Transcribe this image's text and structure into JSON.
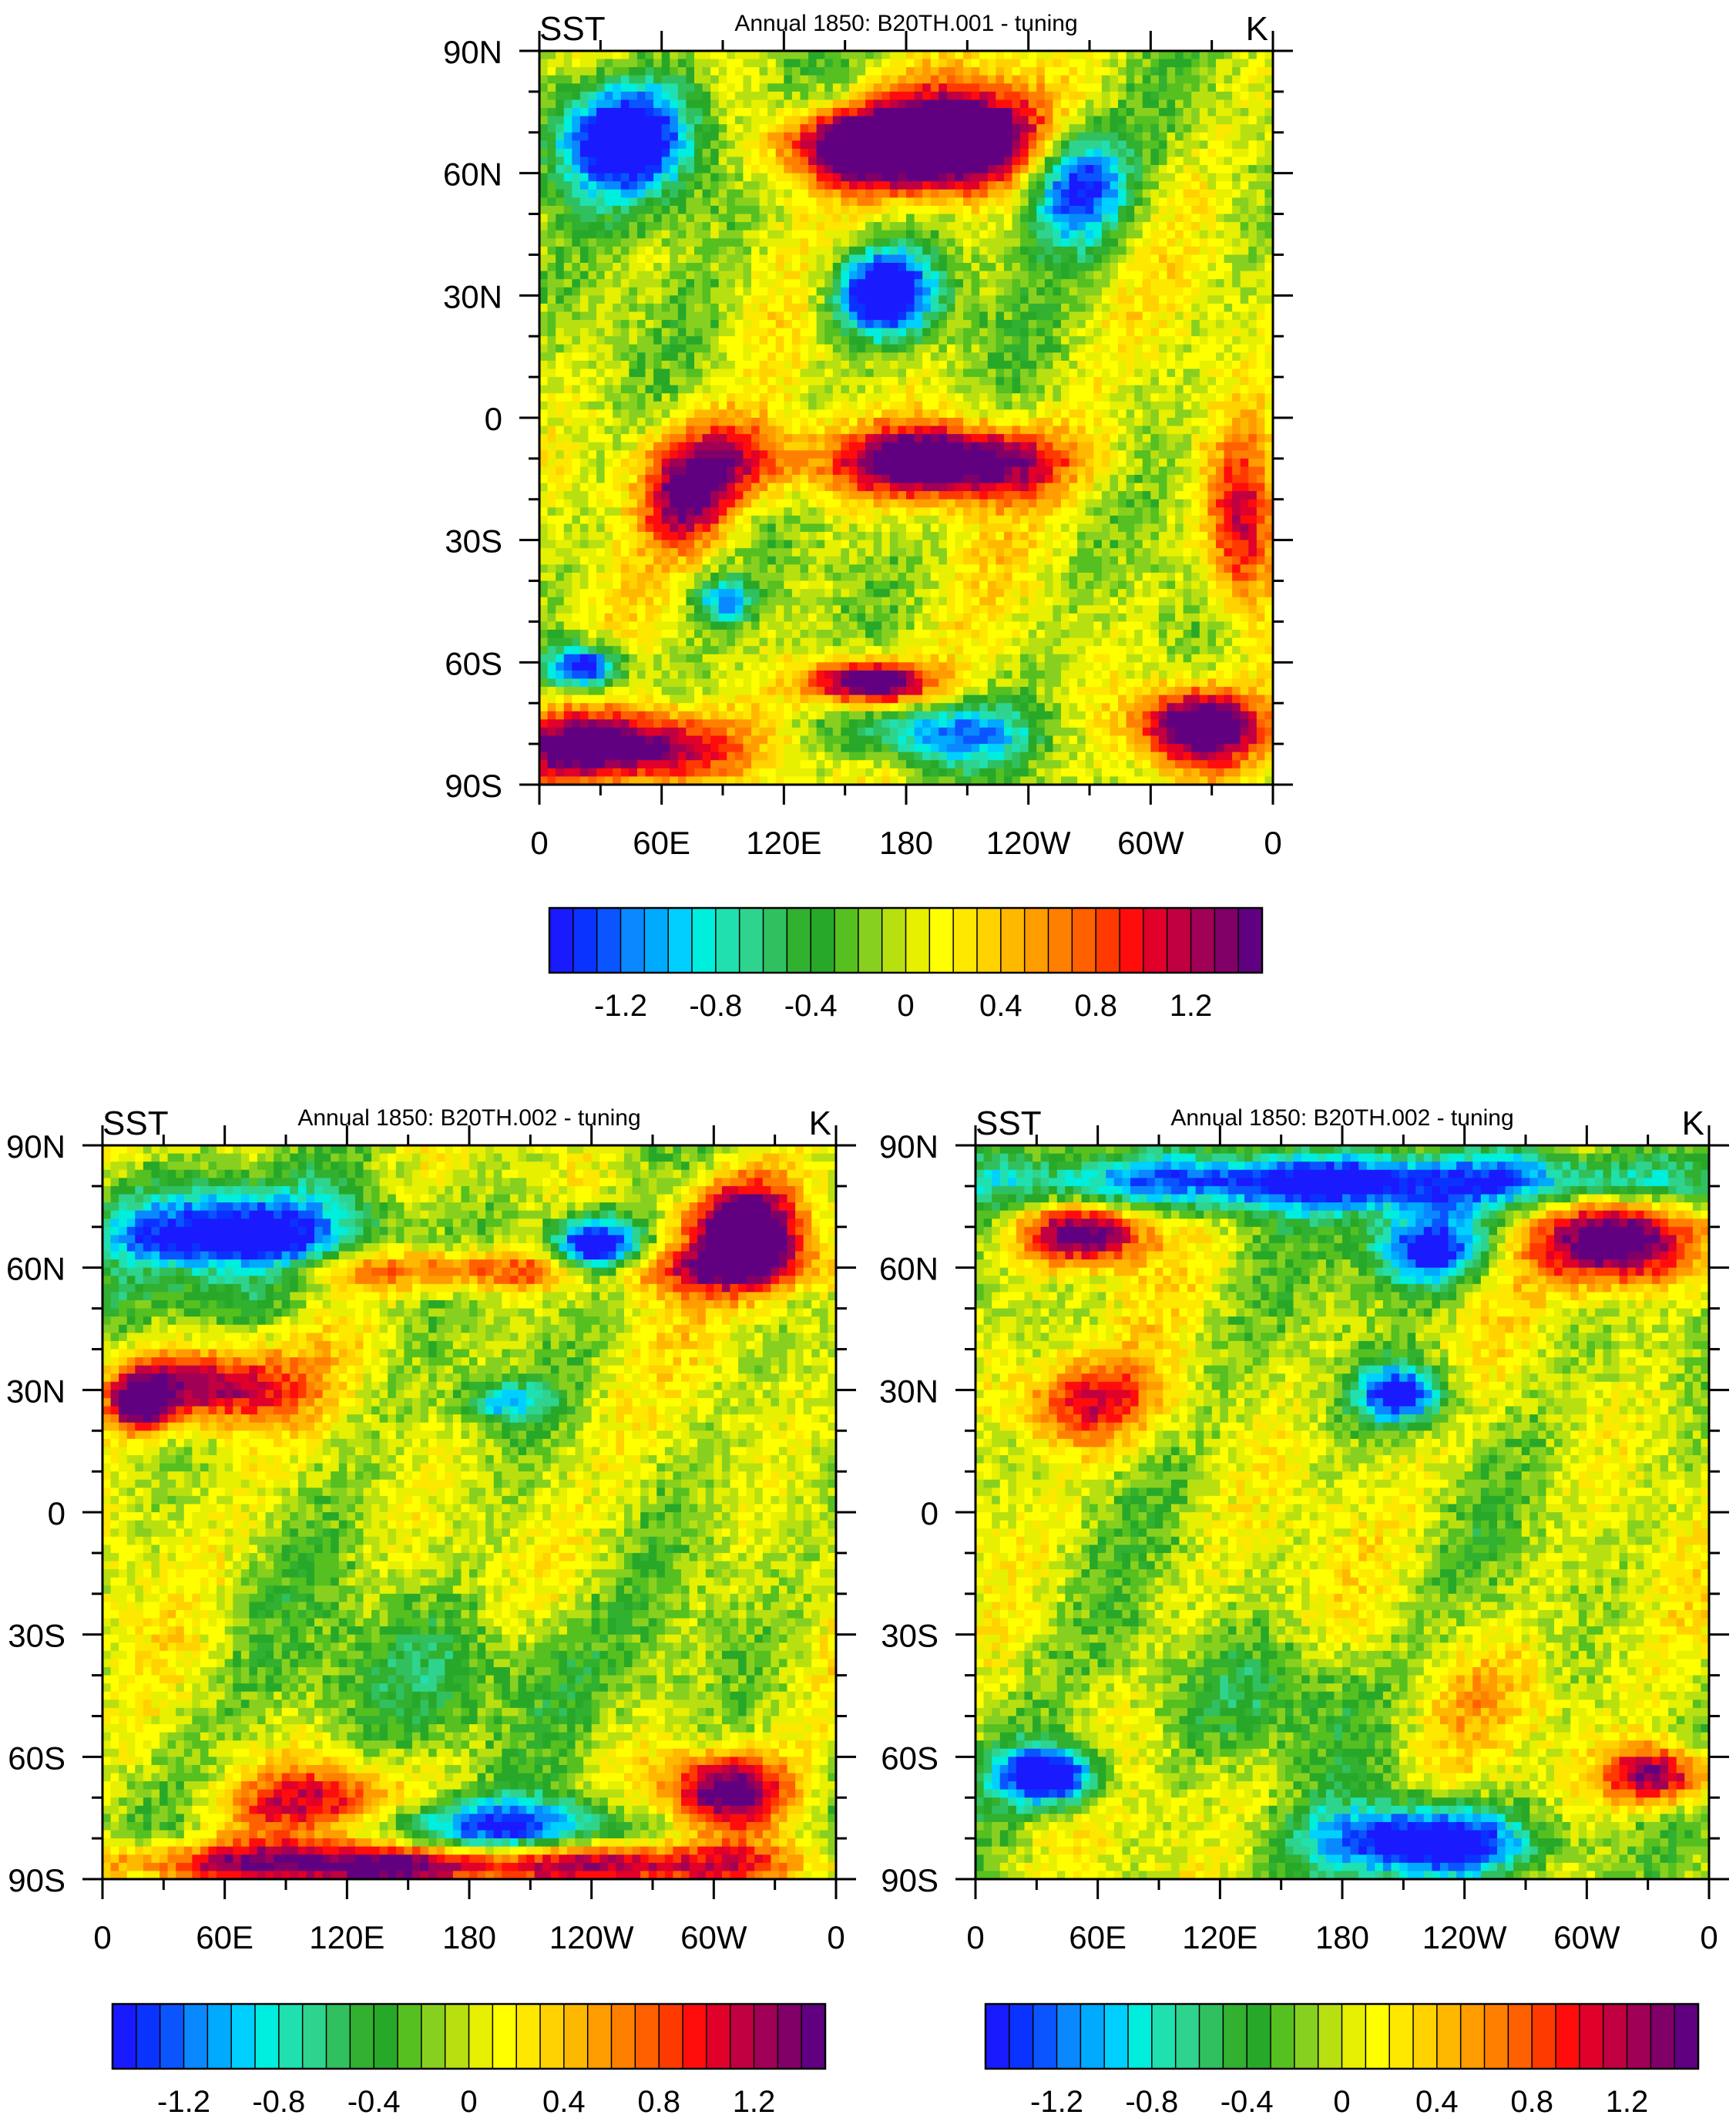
{
  "panels": [
    {
      "left_label": "SST",
      "title": "Annual 1850: B20TH.001 - tuning",
      "right_label": "K",
      "lat_labels": [
        "90N",
        "60N",
        "30N",
        "0",
        "30S",
        "60S",
        "90S"
      ],
      "lon_labels": [
        "0",
        "60E",
        "120E",
        "180",
        "120W",
        "60W",
        "0"
      ],
      "colorbar_labels": [
        "-1.2",
        "-0.8",
        "-0.4",
        "0",
        "0.4",
        "0.8",
        "1.2"
      ]
    },
    {
      "left_label": "SST",
      "title": "Annual 1850: B20TH.002 - tuning",
      "right_label": "K",
      "lat_labels": [
        "90N",
        "60N",
        "30N",
        "0",
        "30S",
        "60S",
        "90S"
      ],
      "lon_labels": [
        "0",
        "60E",
        "120E",
        "180",
        "120W",
        "60W",
        "0"
      ],
      "colorbar_labels": [
        "-1.2",
        "-0.8",
        "-0.4",
        "0",
        "0.4",
        "0.8",
        "1.2"
      ]
    },
    {
      "left_label": "SST",
      "title": "Annual 1850: B20TH.002 - tuning",
      "right_label": "K",
      "lat_labels": [
        "90N",
        "60N",
        "30N",
        "0",
        "30S",
        "60S",
        "90S"
      ],
      "lon_labels": [
        "0",
        "60E",
        "120E",
        "180",
        "120W",
        "60W",
        "0"
      ],
      "colorbar_labels": [
        "-1.2",
        "-0.8",
        "-0.4",
        "0",
        "0.4",
        "0.8",
        "1.2"
      ]
    }
  ],
  "colorbar_colors": [
    "#1a1aff",
    "#0a33ff",
    "#0a55ff",
    "#0a88ff",
    "#00aaff",
    "#00d0ff",
    "#00eedd",
    "#20e0b0",
    "#2ed48e",
    "#30c060",
    "#32b030",
    "#28a828",
    "#55c020",
    "#88d020",
    "#b8e010",
    "#e6f000",
    "#ffff00",
    "#ffe800",
    "#ffd200",
    "#ffb800",
    "#ff9c00",
    "#ff8000",
    "#ff6000",
    "#ff3a00",
    "#ff0d0d",
    "#e0002a",
    "#c00040",
    "#a00055",
    "#800068",
    "#600080"
  ]
}
